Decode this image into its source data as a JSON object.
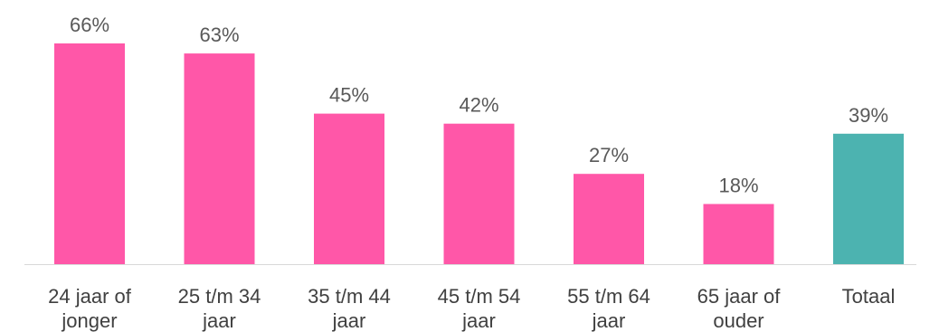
{
  "chart_data": {
    "type": "bar",
    "categories": [
      [
        "24 jaar of",
        "jonger"
      ],
      [
        "25 t/m 34",
        "jaar"
      ],
      [
        "35 t/m 44",
        "jaar"
      ],
      [
        "45 t/m 54",
        "jaar"
      ],
      [
        "55 t/m 64",
        "jaar"
      ],
      [
        "65 jaar of",
        "ouder"
      ],
      [
        "Totaal"
      ]
    ],
    "values": [
      66,
      63,
      45,
      42,
      27,
      18,
      39
    ],
    "data_labels": [
      "66%",
      "63%",
      "45%",
      "42%",
      "27%",
      "18%",
      "39%"
    ],
    "unit": "%",
    "ylim": [
      0,
      66
    ],
    "grid": false,
    "legend": "none",
    "colors": {
      "default": "#ff57a8",
      "highlight": "#4cb3b0",
      "axis": "#d9d9d9"
    },
    "highlight_index": 6
  }
}
